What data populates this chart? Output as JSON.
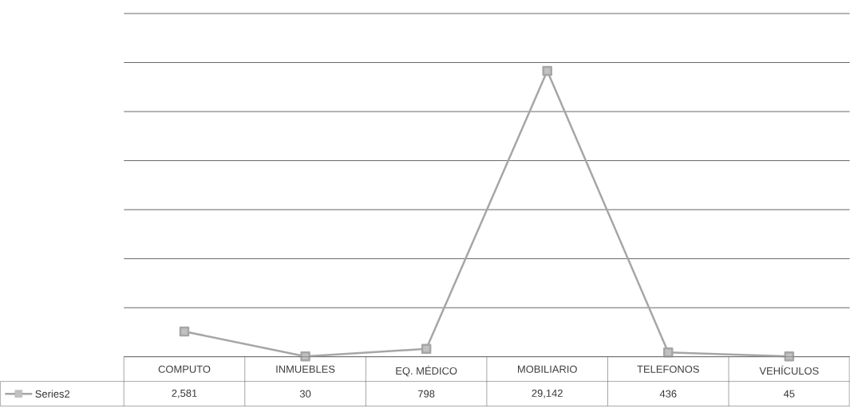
{
  "chart_data": {
    "type": "line",
    "categories": [
      "COMPUTO",
      "INMUEBLES",
      "EQ. MÉDICO",
      "MOBILIARIO",
      "TELEFONOS",
      "VEHÍCULOS"
    ],
    "series": [
      {
        "name": "Series2",
        "color": "#a6a6a6",
        "values": [
          2581,
          30,
          798,
          29142,
          436,
          45
        ],
        "value_labels": [
          "2,581",
          "30",
          "798",
          "29,142",
          "436",
          "45"
        ]
      }
    ],
    "ylim": [
      0,
      35000
    ],
    "yticks": [
      {
        "value": 0,
        "label": null
      },
      {
        "value": 5000,
        "label": null
      },
      {
        "value": 10000,
        "label": null
      },
      {
        "value": 15000,
        "label": null
      },
      {
        "value": 20000,
        "label": null
      },
      {
        "value": 25000,
        "label": null
      },
      {
        "value": 30000,
        "label": null
      },
      {
        "value": 35000,
        "label": null
      }
    ],
    "tick_labels": "x",
    "grid": "y",
    "marker": "square",
    "line_style": "solid",
    "legend": "left"
  }
}
